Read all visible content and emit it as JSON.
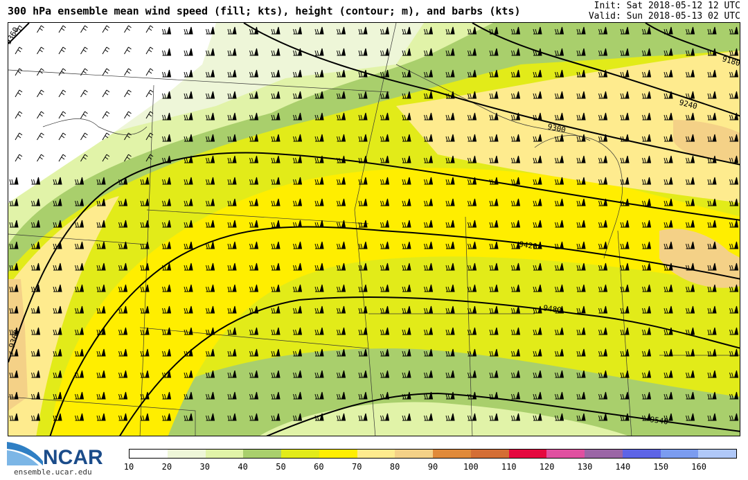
{
  "header": {
    "title": "300 hPa ensemble mean wind speed (fill; kts), height (contour; m), and barbs (kts)",
    "init": "Init: Sat 2018-05-12 12 UTC",
    "valid": "Valid: Sun 2018-05-13 02 UTC"
  },
  "logo": {
    "text": "NCAR",
    "url": "ensemble.ucar.edu"
  },
  "colorbar": {
    "ticks": [
      "10",
      "20",
      "30",
      "40",
      "50",
      "60",
      "70",
      "80",
      "90",
      "100",
      "110",
      "120",
      "130",
      "140",
      "150",
      "160"
    ],
    "colors": [
      "#ffffff",
      "#eef6d8",
      "#e1f3a8",
      "#a9cf6c",
      "#e2eb19",
      "#ffee00",
      "#feeb8e",
      "#f4d187",
      "#e08a3a",
      "#d46e35",
      "#e5083f",
      "#e050a0",
      "#9b66a6",
      "#5d64e6",
      "#7b9cf0",
      "#b0c8f8"
    ]
  },
  "map": {
    "contours": [
      "9360",
      "9360",
      "9420",
      "9480",
      "9540",
      "9300",
      "9240",
      "9180"
    ],
    "fill_colors": {
      "white": "#ffffff",
      "c20": "#eef6d8",
      "c30": "#e1f3a8",
      "c40": "#a9cf6c",
      "c50": "#e2eb19",
      "c60": "#ffee00",
      "c70": "#feeb8e",
      "c80": "#f4d187"
    }
  }
}
